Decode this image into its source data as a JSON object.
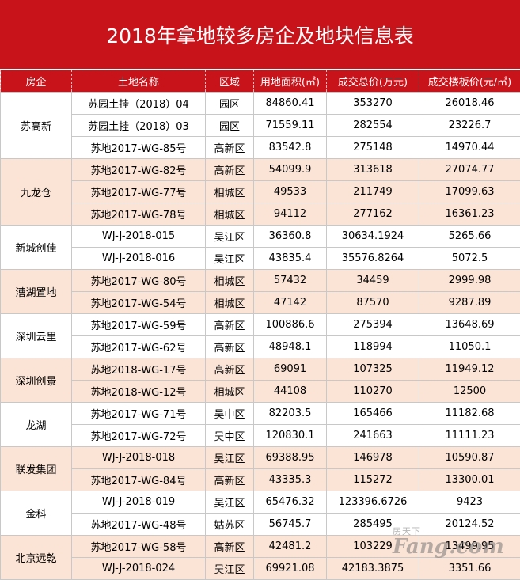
{
  "title": "2018年拿地较多房企及地块信息表",
  "headers": [
    "房企",
    "土地名称",
    "区域",
    "用地面积(㎡)",
    "成交总价(万元)",
    "成交楼板价(元/㎡)"
  ],
  "groups": [
    {
      "company": "苏高新",
      "rows": [
        [
          "苏园土挂（2018）04",
          "园区",
          "84860.41",
          "353270",
          "26018.46"
        ],
        [
          "苏园土挂（2018）03",
          "园区",
          "71559.11",
          "282554",
          "23226.7"
        ],
        [
          "苏地2017-WG-85号",
          "高新区",
          "83542.8",
          "275148",
          "14970.44"
        ]
      ]
    },
    {
      "company": "九龙仓",
      "rows": [
        [
          "苏地2017-WG-82号",
          "高新区",
          "54099.9",
          "313618",
          "27074.77"
        ],
        [
          "苏地2017-WG-77号",
          "相城区",
          "49533",
          "211749",
          "17099.63"
        ],
        [
          "苏地2017-WG-78号",
          "相城区",
          "94112",
          "277162",
          "16361.23"
        ]
      ]
    },
    {
      "company": "新城创佳",
      "rows": [
        [
          "WJ-J-2018-015",
          "吴江区",
          "36360.8",
          "30634.1924",
          "5265.66"
        ],
        [
          "WJ-J-2018-016",
          "吴江区",
          "43835.4",
          "35576.8264",
          "5072.5"
        ]
      ]
    },
    {
      "company": "漕湖置地",
      "rows": [
        [
          "苏地2017-WG-80号",
          "相城区",
          "57432",
          "34459",
          "2999.98"
        ],
        [
          "苏地2017-WG-54号",
          "相城区",
          "47142",
          "87570",
          "9287.89"
        ]
      ]
    },
    {
      "company": "深圳云里",
      "rows": [
        [
          "苏地2017-WG-59号",
          "高新区",
          "100886.6",
          "275394",
          "13648.69"
        ],
        [
          "苏地2017-WG-62号",
          "高新区",
          "48948.1",
          "118994",
          "11050.1"
        ]
      ]
    },
    {
      "company": "深圳创景",
      "rows": [
        [
          "苏地2018-WG-17号",
          "高新区",
          "69091",
          "107325",
          "11949.12"
        ],
        [
          "苏地2018-WG-12号",
          "相城区",
          "44108",
          "110270",
          "12500"
        ]
      ]
    },
    {
      "company": "龙湖",
      "rows": [
        [
          "苏地2017-WG-71号",
          "吴中区",
          "82203.5",
          "165466",
          "11182.68"
        ],
        [
          "苏地2017-WG-72号",
          "吴中区",
          "120830.1",
          "241663",
          "11111.23"
        ]
      ]
    },
    {
      "company": "联发集团",
      "rows": [
        [
          "WJ-J-2018-018",
          "吴江区",
          "69388.95",
          "146978",
          "10590.87"
        ],
        [
          "苏地2017-WG-84号",
          "高新区",
          "43335.3",
          "115272",
          "13300.01"
        ]
      ]
    },
    {
      "company": "金科",
      "rows": [
        [
          "WJ-J-2018-019",
          "吴江区",
          "65476.32",
          "123396.6726",
          "9423"
        ],
        [
          "苏地2017-WG-48号",
          "姑苏区",
          "56745.7",
          "285495",
          "20124.52"
        ]
      ]
    },
    {
      "company": "北京远乾",
      "rows": [
        [
          "苏地2017-WG-58号",
          "高新区",
          "42481.2",
          "103229",
          "13499.95"
        ],
        [
          "WJ-J-2018-024",
          "吴江区",
          "69921.08",
          "42183.3875",
          "3351.66"
        ]
      ]
    }
  ],
  "watermark": {
    "top": "房天下",
    "main": "Fang.com"
  },
  "colors": {
    "header_red": "#c9131b",
    "band_pink": "#fbe4d6",
    "band_white": "#ffffff"
  }
}
